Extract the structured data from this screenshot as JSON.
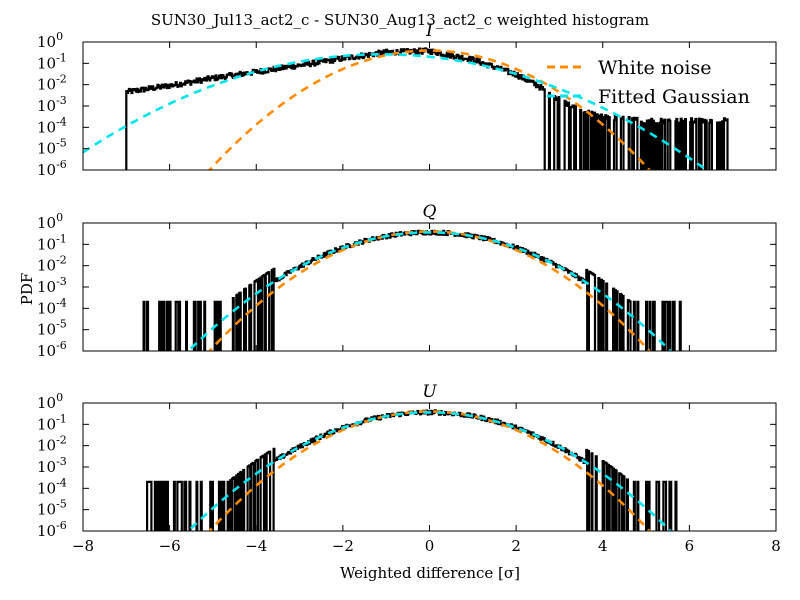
{
  "chart_data": {
    "type": "line",
    "title": "SUN30_Jul13_act2_c - SUN30_Aug13_act2_c weighted histogram",
    "xlabel": "Weighted difference [σ]",
    "ylabel": "PDF",
    "xlim": [
      -8,
      8
    ],
    "ylim": [
      1e-06,
      1
    ],
    "yscale": "log",
    "x_ticks": [
      -8,
      -6,
      -4,
      -2,
      0,
      2,
      4,
      6,
      8
    ],
    "y_tick_exponents": [
      "0",
      "-1",
      "-2",
      "-3",
      "-4",
      "-5",
      "-6"
    ],
    "legend": {
      "location": "upper-right (top panel)",
      "entries": [
        {
          "label": "White noise",
          "color": "#ff8c00",
          "style": "dashed"
        },
        {
          "label": "Fitted Gaussian",
          "color": "#00e5ee",
          "style": "dashed"
        }
      ]
    },
    "panels": [
      {
        "name": "I",
        "white_noise": {
          "mean": 0,
          "sigma": 1
        },
        "fitted_gaussian": {
          "mean": -1.1,
          "sigma": 1.5
        },
        "histogram_range": [
          -7.0,
          6.9
        ],
        "histogram_profile": [
          [
            -7.0,
            0.0045
          ],
          [
            -6.0,
            0.009
          ],
          [
            -5.0,
            0.02
          ],
          [
            -4.0,
            0.04
          ],
          [
            -3.0,
            0.08
          ],
          [
            -2.0,
            0.17
          ],
          [
            -1.0,
            0.33
          ],
          [
            0.0,
            0.38
          ],
          [
            1.0,
            0.15
          ],
          [
            2.0,
            0.03
          ],
          [
            2.5,
            0.009
          ],
          [
            3.0,
            0.002
          ],
          [
            3.5,
            0.0006
          ],
          [
            4.0,
            0.0003
          ],
          [
            5.0,
            0.0002
          ],
          [
            6.9,
            0.0002
          ]
        ]
      },
      {
        "name": "Q",
        "white_noise": {
          "mean": 0,
          "sigma": 1
        },
        "fitted_gaussian": {
          "mean": 0,
          "sigma": 1.1
        },
        "histogram_range": [
          -6.6,
          5.8
        ]
      },
      {
        "name": "U",
        "white_noise": {
          "mean": 0,
          "sigma": 1
        },
        "fitted_gaussian": {
          "mean": 0,
          "sigma": 1.1
        },
        "histogram_range": [
          -6.6,
          5.7
        ]
      }
    ]
  }
}
